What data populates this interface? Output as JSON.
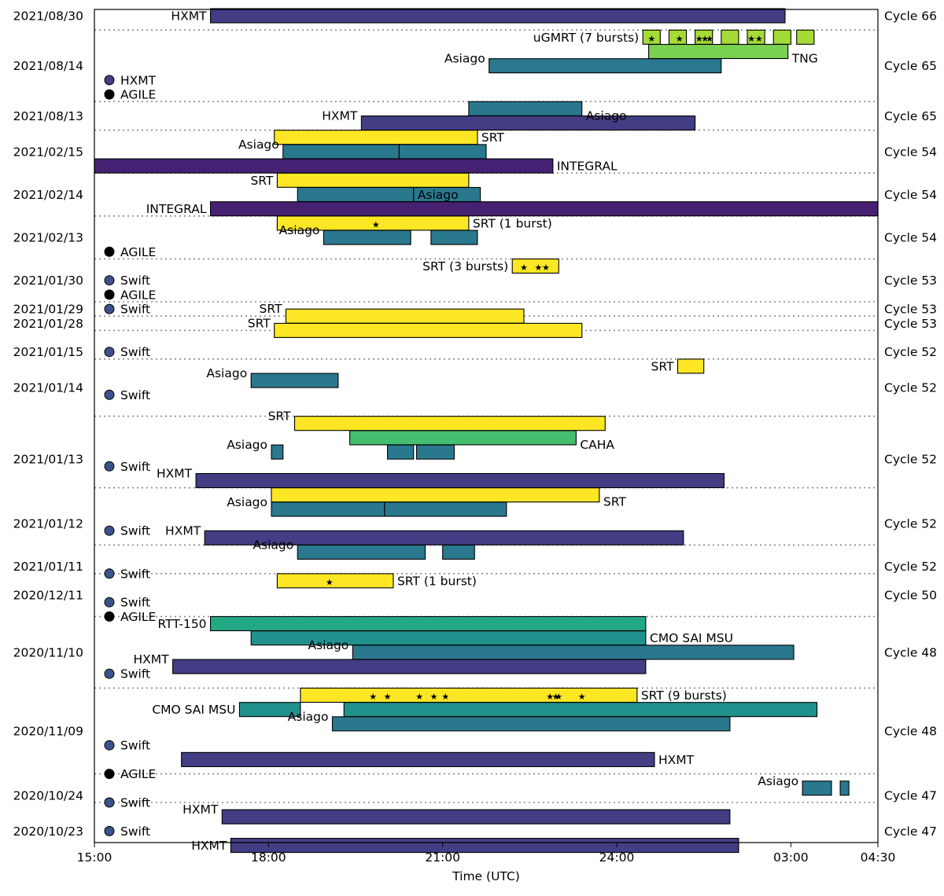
{
  "chart_data": {
    "type": "gantt",
    "xlabel": "Time (UTC)",
    "x_range_hours": [
      15,
      28.5
    ],
    "x_ticks": [
      {
        "h": 15,
        "label": "15:00"
      },
      {
        "h": 18,
        "label": "18:00"
      },
      {
        "h": 21,
        "label": "21:00"
      },
      {
        "h": 24,
        "label": "24:00"
      },
      {
        "h": 27,
        "label": "03:00"
      },
      {
        "h": 28.5,
        "label": "04:30"
      }
    ],
    "colors": {
      "HXMT": "#433d84",
      "INTEGRAL": "#462171",
      "Asiago": "#2a788e",
      "SRT": "#fde725",
      "CAHA": "#44bf70",
      "RTT-150": "#22a884",
      "CMO SAI MSU": "#21918c",
      "uGMRT": "#a5db36",
      "TNG": "#7ad151",
      "Swift": "#3b528b",
      "AGILE": "#000000"
    },
    "date_labels": [
      {
        "row": 0,
        "text": "2021/08/30"
      },
      {
        "row": 3.5,
        "text": "2021/08/14"
      },
      {
        "row": 7,
        "text": "2021/08/13"
      },
      {
        "row": 9.5,
        "text": "2021/02/15"
      },
      {
        "row": 12.5,
        "text": "2021/02/14"
      },
      {
        "row": 15.5,
        "text": "2021/02/13"
      },
      {
        "row": 18.5,
        "text": "2021/01/30"
      },
      {
        "row": 20.5,
        "text": "2021/01/29"
      },
      {
        "row": 21.5,
        "text": "2021/01/28"
      },
      {
        "row": 23.5,
        "text": "2021/01/15"
      },
      {
        "row": 26,
        "text": "2021/01/14"
      },
      {
        "row": 31,
        "text": "2021/01/13"
      },
      {
        "row": 35.5,
        "text": "2021/01/12"
      },
      {
        "row": 38.5,
        "text": "2021/01/11"
      },
      {
        "row": 40.5,
        "text": "2020/12/11"
      },
      {
        "row": 44.5,
        "text": "2020/11/10"
      },
      {
        "row": 50,
        "text": "2020/11/09"
      },
      {
        "row": 54.5,
        "text": "2020/10/24"
      },
      {
        "row": 57,
        "text": "2020/10/23"
      }
    ],
    "cycle_labels": [
      {
        "row": 0,
        "text": "Cycle 66"
      },
      {
        "row": 3.5,
        "text": "Cycle 65"
      },
      {
        "row": 7,
        "text": "Cycle 65"
      },
      {
        "row": 9.5,
        "text": "Cycle 54"
      },
      {
        "row": 12.5,
        "text": "Cycle 54"
      },
      {
        "row": 15.5,
        "text": "Cycle 54"
      },
      {
        "row": 18.5,
        "text": "Cycle 53"
      },
      {
        "row": 20.5,
        "text": "Cycle 53"
      },
      {
        "row": 21.5,
        "text": "Cycle 53"
      },
      {
        "row": 23.5,
        "text": "Cycle 52"
      },
      {
        "row": 26,
        "text": "Cycle 52"
      },
      {
        "row": 31,
        "text": "Cycle 52"
      },
      {
        "row": 35.5,
        "text": "Cycle 52"
      },
      {
        "row": 38.5,
        "text": "Cycle 52"
      },
      {
        "row": 40.5,
        "text": "Cycle 50"
      },
      {
        "row": 44.5,
        "text": "Cycle 48"
      },
      {
        "row": 50,
        "text": "Cycle 48"
      },
      {
        "row": 54.5,
        "text": "Cycle 47"
      },
      {
        "row": 57,
        "text": "Cycle 47"
      }
    ],
    "separators": [
      1,
      6,
      8,
      11,
      14,
      17,
      20,
      21,
      22,
      24,
      28,
      33,
      37,
      39,
      42,
      47,
      53,
      55
    ],
    "markers": [
      {
        "row": 4.5,
        "facility": "HXMT",
        "label": "HXMT"
      },
      {
        "row": 5.5,
        "facility": "AGILE",
        "label": "AGILE"
      },
      {
        "row": 16.5,
        "facility": "AGILE",
        "label": "AGILE"
      },
      {
        "row": 18.5,
        "facility": "Swift",
        "label": "Swift"
      },
      {
        "row": 19.5,
        "facility": "AGILE",
        "label": "AGILE"
      },
      {
        "row": 20.5,
        "facility": "Swift",
        "label": "Swift"
      },
      {
        "row": 23.5,
        "facility": "Swift",
        "label": "Swift"
      },
      {
        "row": 26.5,
        "facility": "Swift",
        "label": "Swift"
      },
      {
        "row": 31.5,
        "facility": "Swift",
        "label": "Swift"
      },
      {
        "row": 36,
        "facility": "Swift",
        "label": "Swift"
      },
      {
        "row": 39,
        "facility": "Swift",
        "label": "Swift"
      },
      {
        "row": 41,
        "facility": "Swift",
        "label": "Swift"
      },
      {
        "row": 42,
        "facility": "AGILE",
        "label": "AGILE"
      },
      {
        "row": 46,
        "facility": "Swift",
        "label": "Swift"
      },
      {
        "row": 51,
        "facility": "Swift",
        "label": "Swift"
      },
      {
        "row": 53,
        "facility": "AGILE",
        "label": "AGILE"
      },
      {
        "row": 55,
        "facility": "Swift",
        "label": "Swift"
      },
      {
        "row": 57,
        "facility": "Swift",
        "label": "Swift"
      }
    ],
    "bars": [
      {
        "row": 0,
        "facility": "HXMT",
        "start": 17.0,
        "end": 26.9,
        "label": "HXMT",
        "label_side": "left"
      },
      {
        "row": 1.5,
        "facility": "uGMRT",
        "start": 24.45,
        "end": 24.75,
        "label": "uGMRT (7 bursts)",
        "label_side": "left",
        "bursts": [
          24.6
        ]
      },
      {
        "row": 1.5,
        "facility": "uGMRT",
        "start": 24.9,
        "end": 25.2,
        "bursts": [
          25.08
        ]
      },
      {
        "row": 1.5,
        "facility": "uGMRT",
        "start": 25.35,
        "end": 25.65,
        "bursts": [
          25.42,
          25.52,
          25.6
        ]
      },
      {
        "row": 1.5,
        "facility": "uGMRT",
        "start": 25.8,
        "end": 26.1
      },
      {
        "row": 1.5,
        "facility": "uGMRT",
        "start": 26.25,
        "end": 26.55,
        "bursts": [
          26.32,
          26.45
        ]
      },
      {
        "row": 1.5,
        "facility": "uGMRT",
        "start": 26.7,
        "end": 27.0
      },
      {
        "row": 1.5,
        "facility": "uGMRT",
        "start": 27.1,
        "end": 27.4
      },
      {
        "row": 2.5,
        "facility": "TNG",
        "start": 24.55,
        "end": 26.95,
        "label": "TNG",
        "label_side": "right-below"
      },
      {
        "row": 3.5,
        "facility": "Asiago",
        "start": 21.8,
        "end": 25.8,
        "label": "Asiago",
        "label_side": "left-above"
      },
      {
        "row": 6.5,
        "facility": "Asiago",
        "start": 21.45,
        "end": 23.4,
        "label": "Asiago",
        "label_side": "right-below"
      },
      {
        "row": 7.5,
        "facility": "HXMT",
        "start": 19.6,
        "end": 25.35,
        "label": "HXMT",
        "label_side": "left-above"
      },
      {
        "row": 8.5,
        "facility": "SRT",
        "start": 18.1,
        "end": 21.6,
        "label": "SRT",
        "label_side": "right"
      },
      {
        "row": 9.5,
        "facility": "Asiago",
        "start": 18.25,
        "end": 20.25,
        "label": "Asiago",
        "label_side": "left-above"
      },
      {
        "row": 9.5,
        "facility": "Asiago",
        "start": 20.25,
        "end": 21.75
      },
      {
        "row": 10.5,
        "facility": "INTEGRAL",
        "start": 15.0,
        "end": 22.9,
        "label": "INTEGRAL",
        "label_side": "right"
      },
      {
        "row": 11.5,
        "facility": "SRT",
        "start": 18.15,
        "end": 21.45,
        "label": "SRT",
        "label_side": "left"
      },
      {
        "row": 12.5,
        "facility": "Asiago",
        "start": 18.5,
        "end": 20.5,
        "label": "Asiago",
        "label_side": "right"
      },
      {
        "row": 12.5,
        "facility": "Asiago",
        "start": 20.5,
        "end": 21.65
      },
      {
        "row": 13.5,
        "facility": "INTEGRAL",
        "start": 17.0,
        "end": 28.5,
        "label": "INTEGRAL",
        "label_side": "left"
      },
      {
        "row": 14.5,
        "facility": "SRT",
        "start": 18.15,
        "end": 21.45,
        "label": "SRT (1 burst)",
        "label_side": "right",
        "bursts": [
          19.85
        ]
      },
      {
        "row": 15.5,
        "facility": "Asiago",
        "start": 18.95,
        "end": 20.45,
        "label": "Asiago",
        "label_side": "left-above"
      },
      {
        "row": 15.5,
        "facility": "Asiago",
        "start": 20.8,
        "end": 21.6
      },
      {
        "row": 17.5,
        "facility": "SRT",
        "start": 22.2,
        "end": 23.0,
        "label": "SRT (3 bursts)",
        "label_side": "left",
        "bursts": [
          22.4,
          22.65,
          22.78
        ]
      },
      {
        "row": 21,
        "facility": "SRT",
        "start": 18.3,
        "end": 22.4,
        "label": "SRT",
        "label_side": "left-above"
      },
      {
        "row": 22,
        "facility": "SRT",
        "start": 18.1,
        "end": 23.4,
        "label": "SRT",
        "label_side": "left-above"
      },
      {
        "row": 24.5,
        "facility": "SRT",
        "start": 25.05,
        "end": 25.5,
        "label": "SRT",
        "label_side": "left"
      },
      {
        "row": 25.5,
        "facility": "Asiago",
        "start": 17.7,
        "end": 19.2,
        "label": "Asiago",
        "label_side": "left-above"
      },
      {
        "row": 28.5,
        "facility": "SRT",
        "start": 18.45,
        "end": 23.8,
        "label": "SRT",
        "label_side": "left-above"
      },
      {
        "row": 29.5,
        "facility": "CAHA",
        "start": 19.4,
        "end": 23.3,
        "label": "CAHA",
        "label_side": "right-below"
      },
      {
        "row": 30.5,
        "facility": "Asiago",
        "start": 18.05,
        "end": 18.25,
        "label": "Asiago",
        "label_side": "left-above"
      },
      {
        "row": 30.5,
        "facility": "Asiago",
        "start": 20.05,
        "end": 20.5
      },
      {
        "row": 30.5,
        "facility": "Asiago",
        "start": 20.55,
        "end": 21.2
      },
      {
        "row": 32.5,
        "facility": "HXMT",
        "start": 16.75,
        "end": 25.85,
        "label": "HXMT",
        "label_side": "left-above"
      },
      {
        "row": 33.5,
        "facility": "SRT",
        "start": 18.05,
        "end": 23.7,
        "label": "SRT",
        "label_side": "right-below"
      },
      {
        "row": 34.5,
        "facility": "Asiago",
        "start": 18.05,
        "end": 20.0,
        "label": "Asiago",
        "label_side": "left-above"
      },
      {
        "row": 34.5,
        "facility": "Asiago",
        "start": 20.0,
        "end": 22.1
      },
      {
        "row": 36.5,
        "facility": "HXMT",
        "start": 16.9,
        "end": 25.15,
        "label": "HXMT",
        "label_side": "left-above"
      },
      {
        "row": 37.5,
        "facility": "Asiago",
        "start": 18.5,
        "end": 20.7,
        "label": "Asiago",
        "label_side": "left-above"
      },
      {
        "row": 37.5,
        "facility": "Asiago",
        "start": 21.0,
        "end": 21.55
      },
      {
        "row": 39.5,
        "facility": "SRT",
        "start": 18.15,
        "end": 20.15,
        "label": "SRT (1 burst)",
        "label_side": "right",
        "bursts": [
          19.05
        ]
      },
      {
        "row": 42.5,
        "facility": "RTT-150",
        "start": 17.0,
        "end": 24.5,
        "label": "RTT-150",
        "label_side": "left"
      },
      {
        "row": 43.5,
        "facility": "CMO SAI MSU",
        "start": 17.7,
        "end": 24.5,
        "label": "CMO SAI MSU",
        "label_side": "right"
      },
      {
        "row": 44.5,
        "facility": "Asiago",
        "start": 19.45,
        "end": 27.05,
        "label": "Asiago",
        "label_side": "left-above"
      },
      {
        "row": 45.5,
        "facility": "HXMT",
        "start": 16.35,
        "end": 24.5,
        "label": "HXMT",
        "label_side": "left-above"
      },
      {
        "row": 47.5,
        "facility": "SRT",
        "start": 18.55,
        "end": 24.35,
        "label": "SRT (9 bursts)",
        "label_side": "right",
        "bursts": [
          19.8,
          20.05,
          20.6,
          20.85,
          21.05,
          22.85,
          22.95,
          23.0,
          23.4
        ]
      },
      {
        "row": 48.5,
        "facility": "CMO SAI MSU",
        "start": 17.5,
        "end": 18.55,
        "label": "CMO SAI MSU",
        "label_side": "left"
      },
      {
        "row": 48.5,
        "facility": "CMO SAI MSU",
        "start": 19.3,
        "end": 27.45
      },
      {
        "row": 49.5,
        "facility": "Asiago",
        "start": 19.1,
        "end": 25.95,
        "label": "Asiago",
        "label_side": "left-above"
      },
      {
        "row": 52,
        "facility": "HXMT",
        "start": 16.5,
        "end": 24.65,
        "label": "HXMT",
        "label_side": "right"
      },
      {
        "row": 54,
        "facility": "Asiago",
        "start": 27.2,
        "end": 27.7,
        "label": "Asiago",
        "label_side": "left-above"
      },
      {
        "row": 54,
        "facility": "Asiago",
        "start": 27.85,
        "end": 28.0
      },
      {
        "row": 56,
        "facility": "HXMT",
        "start": 17.2,
        "end": 25.95,
        "label": "HXMT",
        "label_side": "left-above"
      },
      {
        "row": 58,
        "facility": "HXMT",
        "start": 17.35,
        "end": 26.1,
        "label": "HXMT",
        "label_side": "left"
      }
    ]
  }
}
